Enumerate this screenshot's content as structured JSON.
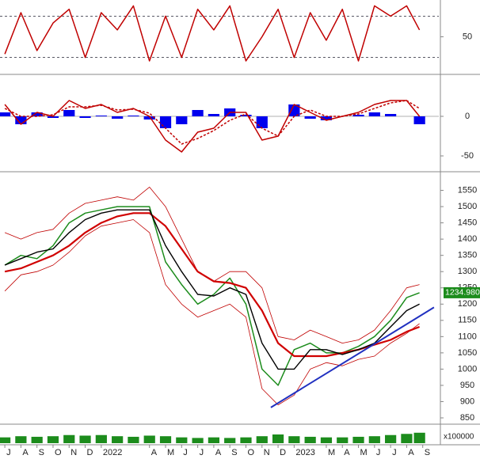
{
  "chart_data": [
    {
      "type": "line",
      "x": [
        0,
        1,
        2,
        3,
        4,
        5,
        6,
        7,
        8,
        9,
        10,
        11,
        12,
        13,
        14,
        15,
        16,
        17,
        18,
        19,
        20,
        21,
        22,
        23,
        24,
        25,
        25.8
      ],
      "xlim": [
        -0.3,
        27
      ],
      "ylim": [
        0,
        100
      ],
      "yticks": [
        50
      ],
      "levels": [
        80,
        20
      ],
      "series": [
        {
          "color": "#c00000",
          "values": [
            25,
            85,
            30,
            70,
            90,
            20,
            85,
            60,
            95,
            15,
            80,
            20,
            90,
            60,
            95,
            15,
            50,
            90,
            20,
            85,
            45,
            90,
            15,
            95,
            80,
            95,
            60
          ]
        }
      ]
    },
    {
      "type": "line",
      "x": [
        0,
        1,
        2,
        3,
        4,
        5,
        6,
        7,
        8,
        9,
        10,
        11,
        12,
        13,
        14,
        15,
        16,
        17,
        18,
        19,
        20,
        21,
        22,
        23,
        24,
        25,
        25.8
      ],
      "xlim": [
        -0.3,
        27
      ],
      "ylim": [
        -68,
        50
      ],
      "yticks": [
        0,
        -50
      ],
      "series": [
        {
          "kind": "bar",
          "color": "#0000ee",
          "values": [
            5,
            -10,
            5,
            -2,
            8,
            -2,
            1,
            -3,
            1,
            -4,
            -15,
            -10,
            8,
            3,
            10,
            2,
            -15,
            0,
            15,
            -3,
            -5,
            0,
            2,
            5,
            3,
            0,
            -10
          ]
        },
        {
          "color": "#c00000",
          "values": [
            15,
            -10,
            5,
            0,
            20,
            10,
            15,
            5,
            10,
            0,
            -30,
            -45,
            -20,
            -15,
            5,
            5,
            -30,
            -25,
            15,
            5,
            -5,
            0,
            5,
            15,
            20,
            20,
            0
          ]
        },
        {
          "color": "#c00000",
          "dashed": true,
          "values": [
            10,
            0,
            0,
            2,
            12,
            12,
            14,
            8,
            9,
            4,
            -15,
            -35,
            -28,
            -18,
            -5,
            3,
            -15,
            -25,
            0,
            8,
            0,
            0,
            3,
            10,
            17,
            20,
            10
          ]
        }
      ]
    },
    {
      "type": "line",
      "x": [
        0,
        1,
        2,
        3,
        4,
        5,
        6,
        7,
        8,
        9,
        10,
        11,
        12,
        13,
        14,
        15,
        16,
        17,
        18,
        19,
        20,
        21,
        22,
        23,
        24,
        25,
        25.8
      ],
      "xlim": [
        -0.3,
        27
      ],
      "ylim": [
        833,
        1600
      ],
      "yticks": [
        850,
        900,
        950,
        1000,
        1050,
        1100,
        1150,
        1200,
        1250,
        1300,
        1350,
        1400,
        1450,
        1500,
        1550
      ],
      "last_value": {
        "value": 1234.98,
        "label": "1234.980"
      },
      "series": [
        {
          "color": "#c00000",
          "width": 0.8,
          "values": [
            1420,
            1400,
            1420,
            1430,
            1480,
            1510,
            1520,
            1530,
            1520,
            1560,
            1500,
            1400,
            1300,
            1270,
            1300,
            1300,
            1250,
            1100,
            1090,
            1120,
            1100,
            1080,
            1090,
            1120,
            1180,
            1250,
            1260
          ]
        },
        {
          "color": "#c00000",
          "width": 0.8,
          "values": [
            1240,
            1290,
            1300,
            1320,
            1360,
            1410,
            1440,
            1450,
            1460,
            1420,
            1260,
            1200,
            1160,
            1180,
            1200,
            1160,
            940,
            890,
            920,
            1000,
            1020,
            1010,
            1030,
            1040,
            1080,
            1110,
            1140
          ]
        },
        {
          "color": "#1c8c1c",
          "width": 1.5,
          "values": [
            1320,
            1350,
            1340,
            1380,
            1450,
            1480,
            1490,
            1500,
            1500,
            1500,
            1330,
            1260,
            1200,
            1230,
            1280,
            1200,
            1000,
            950,
            1060,
            1080,
            1050,
            1050,
            1070,
            1100,
            1150,
            1220,
            1235
          ]
        },
        {
          "color": "#d00000",
          "width": 2.2,
          "values": [
            1300,
            1310,
            1330,
            1350,
            1380,
            1420,
            1450,
            1470,
            1480,
            1480,
            1440,
            1370,
            1300,
            1270,
            1265,
            1250,
            1180,
            1080,
            1040,
            1040,
            1040,
            1050,
            1060,
            1075,
            1090,
            1115,
            1130
          ]
        },
        {
          "color": "#000000",
          "width": 1.4,
          "values": [
            1320,
            1340,
            1360,
            1370,
            1420,
            1460,
            1480,
            1490,
            1490,
            1490,
            1380,
            1300,
            1230,
            1225,
            1250,
            1230,
            1080,
            1000,
            1000,
            1060,
            1060,
            1045,
            1060,
            1080,
            1130,
            1180,
            1200
          ]
        }
      ],
      "trendline": {
        "color": "#2030c0",
        "x": [
          16.55,
          26.7
        ],
        "values": [
          882,
          1190
        ]
      }
    },
    {
      "type": "bar",
      "x": [
        0,
        1,
        2,
        3,
        4,
        5,
        6,
        7,
        8,
        9,
        10,
        11,
        12,
        13,
        14,
        15,
        16,
        17,
        18,
        19,
        20,
        21,
        22,
        23,
        24,
        25,
        25.8
      ],
      "xlim": [
        -0.3,
        27
      ],
      "ylim": [
        0,
        15000
      ],
      "unit_label": "x100000",
      "series": [
        {
          "color": "#1c8c1c",
          "values": [
            5000,
            6000,
            5500,
            6000,
            7000,
            6500,
            7000,
            6000,
            5500,
            6500,
            6000,
            5000,
            4500,
            5000,
            4500,
            5000,
            6000,
            7500,
            6000,
            5500,
            5000,
            5000,
            5500,
            6000,
            7000,
            8000,
            9000
          ]
        }
      ],
      "xticks": [
        {
          "value": 0,
          "label": "J"
        },
        {
          "value": 1,
          "label": "A"
        },
        {
          "value": 2,
          "label": "S"
        },
        {
          "value": 3,
          "label": "O"
        },
        {
          "value": 4,
          "label": "N"
        },
        {
          "value": 5,
          "label": "D"
        },
        {
          "value": 6,
          "label": "2022"
        },
        {
          "value": 9,
          "label": "A"
        },
        {
          "value": 10,
          "label": "M"
        },
        {
          "value": 11,
          "label": "J"
        },
        {
          "value": 12,
          "label": "J"
        },
        {
          "value": 13,
          "label": "A"
        },
        {
          "value": 14,
          "label": "S"
        },
        {
          "value": 15,
          "label": "O"
        },
        {
          "value": 16,
          "label": "N"
        },
        {
          "value": 17,
          "label": "D"
        },
        {
          "value": 18,
          "label": "2023"
        },
        {
          "value": 20,
          "label": "M"
        },
        {
          "value": 21,
          "label": "A"
        },
        {
          "value": 22,
          "label": "M"
        },
        {
          "value": 23,
          "label": "J"
        },
        {
          "value": 24,
          "label": "J"
        },
        {
          "value": 25,
          "label": "A"
        },
        {
          "value": 26,
          "label": "S"
        }
      ]
    }
  ]
}
